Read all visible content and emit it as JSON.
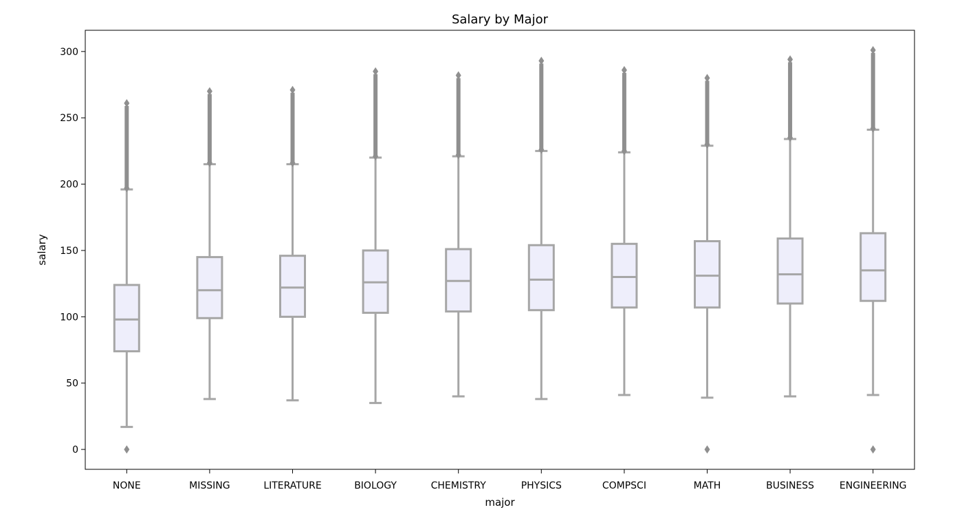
{
  "chart_data": {
    "type": "box",
    "title": "Salary by Major",
    "xlabel": "major",
    "ylabel": "salary",
    "ylim": [
      -15,
      316
    ],
    "yticks": [
      0,
      50,
      100,
      150,
      200,
      250,
      300
    ],
    "categories": [
      "NONE",
      "MISSING",
      "LITERATURE",
      "BIOLOGY",
      "CHEMISTRY",
      "PHYSICS",
      "COMPSCI",
      "MATH",
      "BUSINESS",
      "ENGINEERING"
    ],
    "boxes": [
      {
        "category": "NONE",
        "whisker_low": 17,
        "q1": 74,
        "median": 98,
        "q3": 124,
        "whisker_high": 196,
        "outliers_low": [
          0
        ],
        "outliers_high_range": [
          197,
          261
        ]
      },
      {
        "category": "MISSING",
        "whisker_low": 38,
        "q1": 99,
        "median": 120,
        "q3": 145,
        "whisker_high": 215,
        "outliers_low": [],
        "outliers_high_range": [
          216,
          270
        ]
      },
      {
        "category": "LITERATURE",
        "whisker_low": 37,
        "q1": 100,
        "median": 122,
        "q3": 146,
        "whisker_high": 215,
        "outliers_low": [],
        "outliers_high_range": [
          216,
          271
        ]
      },
      {
        "category": "BIOLOGY",
        "whisker_low": 35,
        "q1": 103,
        "median": 126,
        "q3": 150,
        "whisker_high": 220,
        "outliers_low": [],
        "outliers_high_range": [
          221,
          285
        ]
      },
      {
        "category": "CHEMISTRY",
        "whisker_low": 40,
        "q1": 104,
        "median": 127,
        "q3": 151,
        "whisker_high": 221,
        "outliers_low": [],
        "outliers_high_range": [
          222,
          282
        ]
      },
      {
        "category": "PHYSICS",
        "whisker_low": 38,
        "q1": 105,
        "median": 128,
        "q3": 154,
        "whisker_high": 225,
        "outliers_low": [],
        "outliers_high_range": [
          226,
          293
        ]
      },
      {
        "category": "COMPSCI",
        "whisker_low": 41,
        "q1": 107,
        "median": 130,
        "q3": 155,
        "whisker_high": 224,
        "outliers_low": [],
        "outliers_high_range": [
          225,
          286
        ]
      },
      {
        "category": "MATH",
        "whisker_low": 39,
        "q1": 107,
        "median": 131,
        "q3": 157,
        "whisker_high": 229,
        "outliers_low": [
          0
        ],
        "outliers_high_range": [
          230,
          280
        ]
      },
      {
        "category": "BUSINESS",
        "whisker_low": 40,
        "q1": 110,
        "median": 132,
        "q3": 159,
        "whisker_high": 234,
        "outliers_low": [],
        "outliers_high_range": [
          235,
          294
        ]
      },
      {
        "category": "ENGINEERING",
        "whisker_low": 41,
        "q1": 112,
        "median": 135,
        "q3": 163,
        "whisker_high": 241,
        "outliers_low": [
          0
        ],
        "outliers_high_range": [
          242,
          301
        ]
      }
    ],
    "grid": false,
    "legend": "none",
    "colors": {
      "box_fill": "#eeeefb",
      "box_line": "#a6a6a6",
      "outlier": "#8f8f8f",
      "axes": "#000000"
    }
  }
}
